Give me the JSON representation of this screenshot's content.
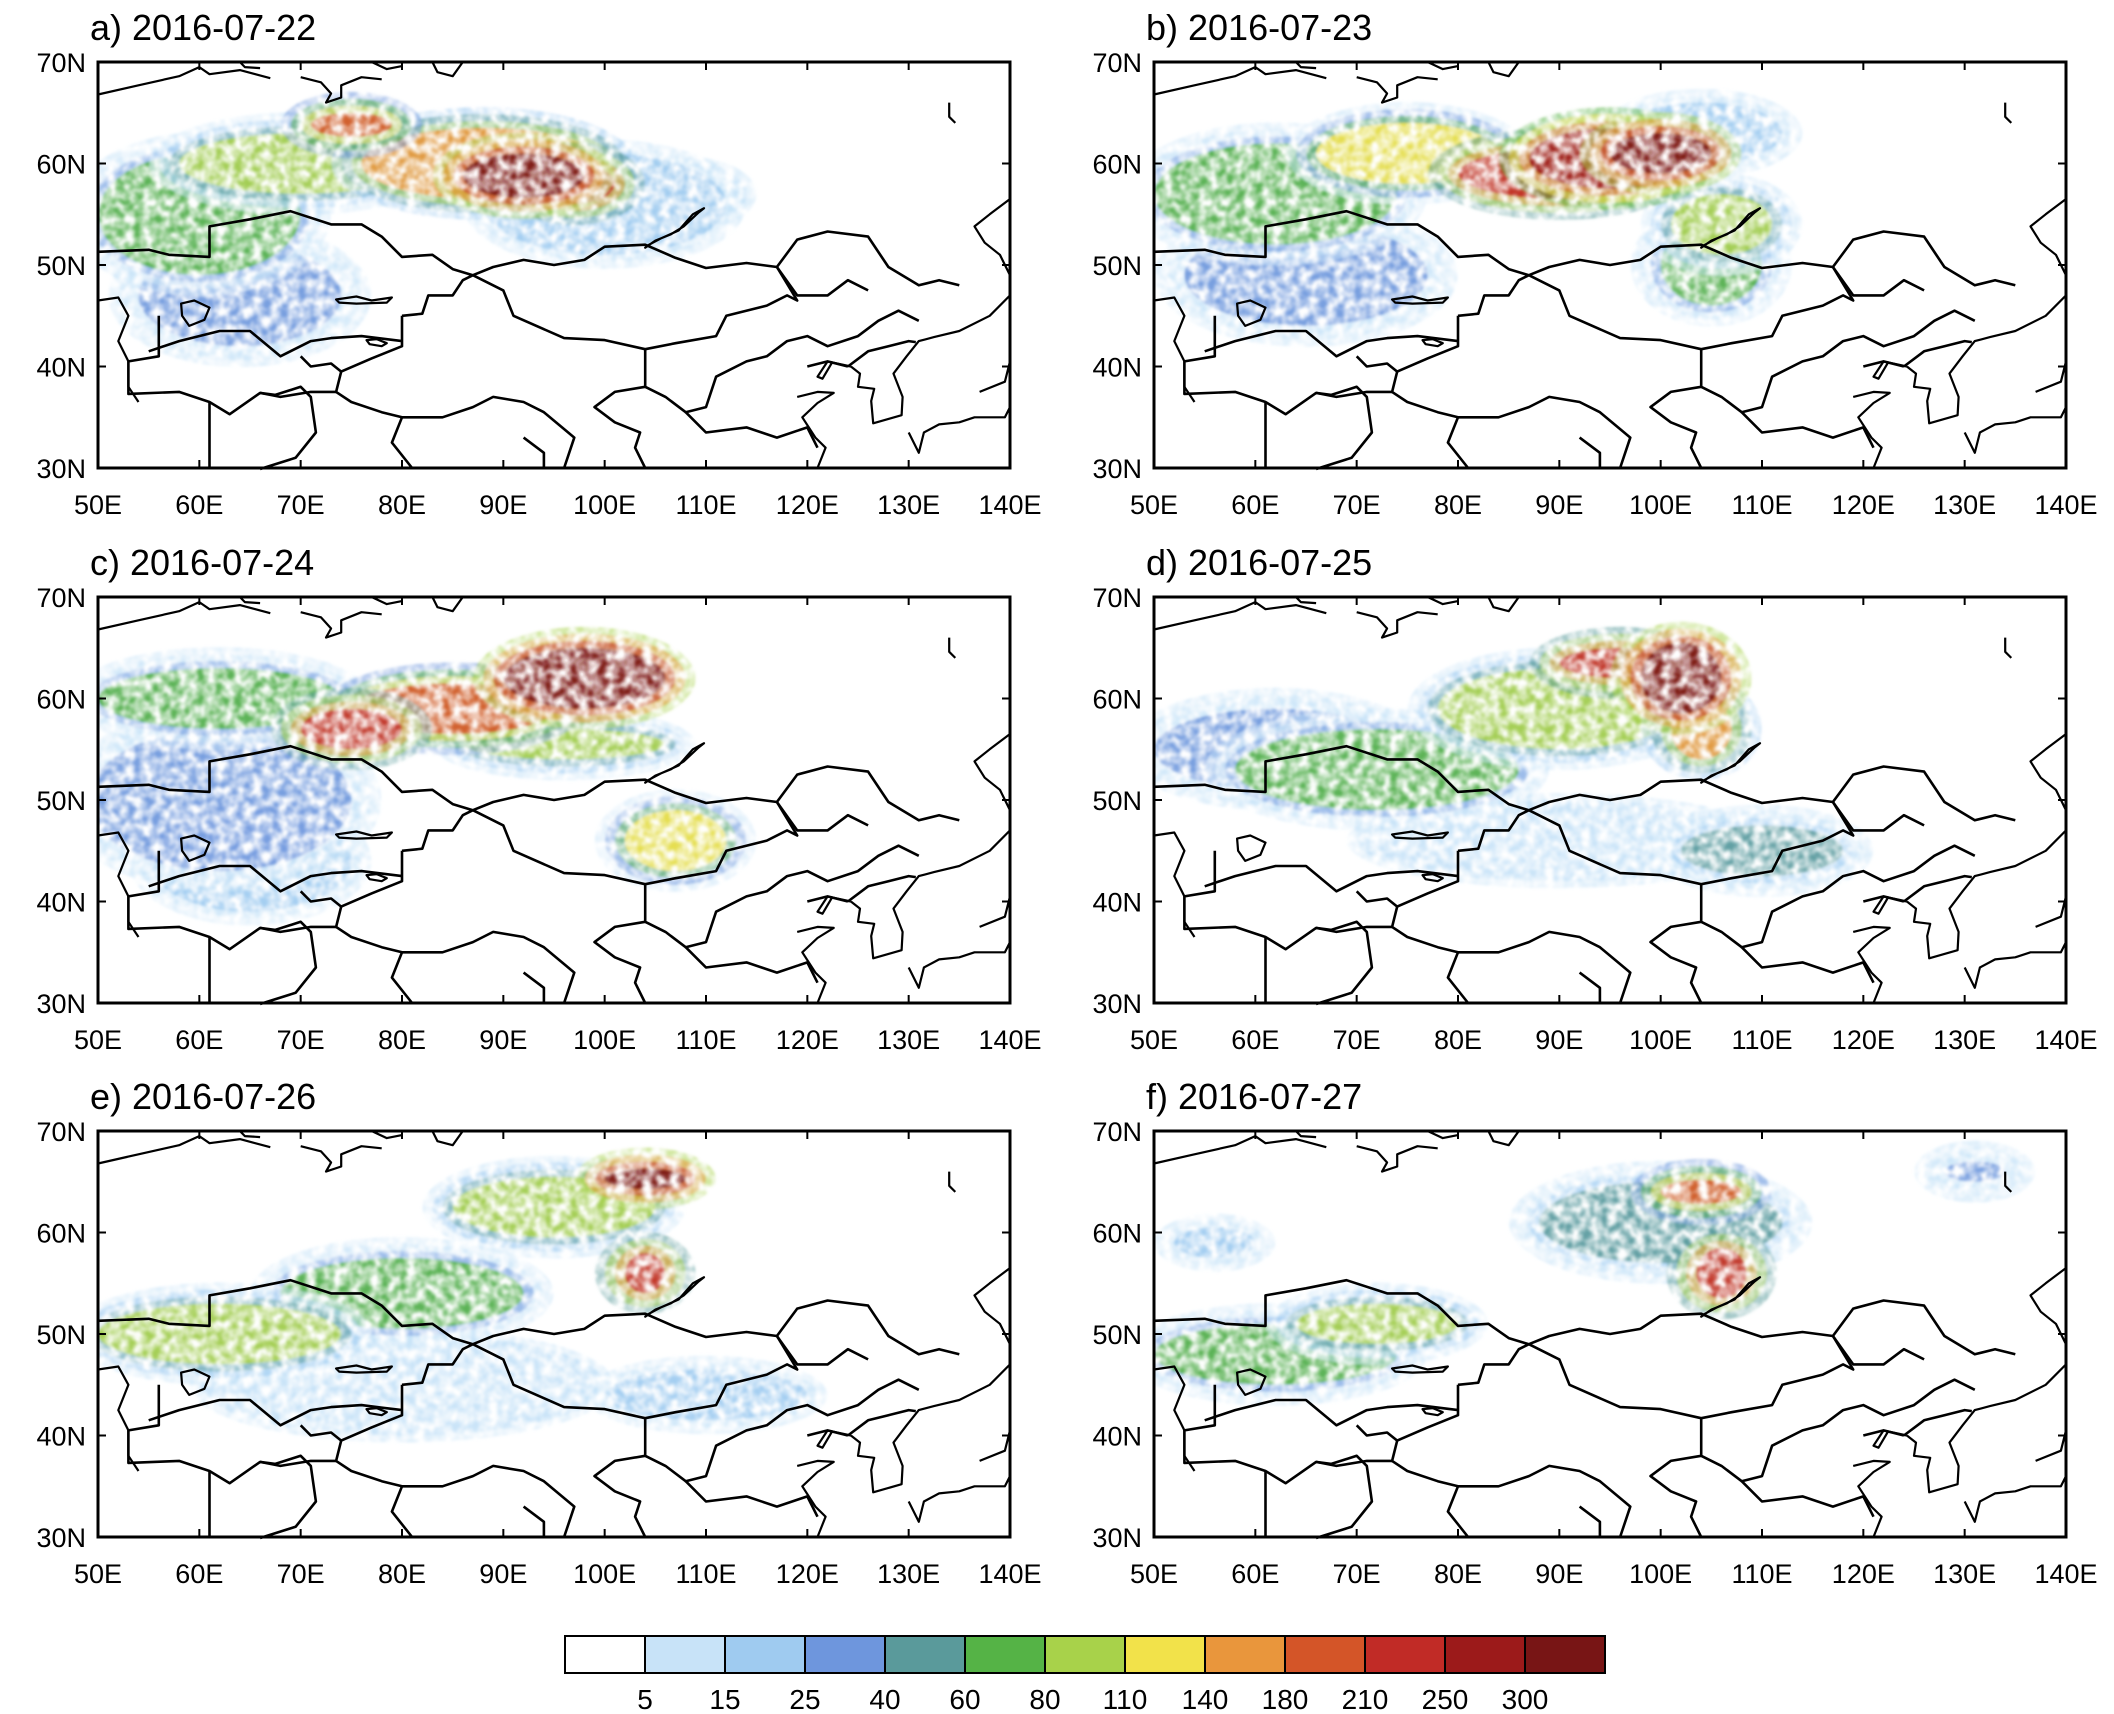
{
  "panels": [
    {
      "id": "a",
      "title": "a) 2016-07-22",
      "plumes": [
        {
          "lon": 92,
          "lat": 58.8,
          "rlon": 6,
          "rlat": 2.2,
          "level": 12
        },
        {
          "lon": 97,
          "lat": 58,
          "rlon": 4,
          "rlat": 2,
          "level": 10
        },
        {
          "lon": 88,
          "lat": 60,
          "rlon": 12,
          "rlat": 3.5,
          "level": 8
        },
        {
          "lon": 75,
          "lat": 63.8,
          "rlon": 4,
          "rlat": 1.2,
          "level": 9
        },
        {
          "lon": 70,
          "lat": 60,
          "rlon": 12,
          "rlat": 3,
          "level": 6
        },
        {
          "lon": 60,
          "lat": 55,
          "rlon": 10,
          "rlat": 6,
          "level": 5
        },
        {
          "lon": 64,
          "lat": 47,
          "rlon": 10,
          "rlat": 5,
          "level": 3
        },
        {
          "lon": 100,
          "lat": 56,
          "rlon": 12,
          "rlat": 5,
          "level": 2
        },
        {
          "lon": 108,
          "lat": 57,
          "rlon": 6,
          "rlat": 3,
          "level": 1
        }
      ]
    },
    {
      "id": "b",
      "title": "b) 2016-07-23",
      "plumes": [
        {
          "lon": 95,
          "lat": 60.5,
          "rlon": 8,
          "rlat": 3,
          "level": 11
        },
        {
          "lon": 90,
          "lat": 59,
          "rlon": 10,
          "rlat": 2.5,
          "level": 10
        },
        {
          "lon": 100,
          "lat": 61,
          "rlon": 5,
          "rlat": 2,
          "level": 12
        },
        {
          "lon": 75,
          "lat": 61,
          "rlon": 9,
          "rlat": 3,
          "level": 7
        },
        {
          "lon": 62,
          "lat": 57,
          "rlon": 12,
          "rlat": 5,
          "level": 5
        },
        {
          "lon": 65,
          "lat": 49,
          "rlon": 12,
          "rlat": 5,
          "level": 3
        },
        {
          "lon": 105,
          "lat": 50,
          "rlon": 5,
          "rlat": 4,
          "level": 5
        },
        {
          "lon": 106,
          "lat": 54,
          "rlon": 5,
          "rlat": 3,
          "level": 6
        },
        {
          "lon": 104,
          "lat": 63,
          "rlon": 8,
          "rlat": 3,
          "level": 2
        }
      ]
    },
    {
      "id": "c",
      "title": "c) 2016-07-24",
      "plumes": [
        {
          "lon": 98,
          "lat": 62,
          "rlon": 8,
          "rlat": 3,
          "level": 12
        },
        {
          "lon": 85,
          "lat": 59,
          "rlon": 10,
          "rlat": 2.5,
          "level": 9
        },
        {
          "lon": 75,
          "lat": 57,
          "rlon": 5,
          "rlat": 2,
          "level": 10
        },
        {
          "lon": 62,
          "lat": 60,
          "rlon": 12,
          "rlat": 3,
          "level": 5
        },
        {
          "lon": 96,
          "lat": 55.5,
          "rlon": 10,
          "rlat": 1.5,
          "level": 6
        },
        {
          "lon": 107,
          "lat": 46,
          "rlon": 5,
          "rlat": 3,
          "level": 7
        },
        {
          "lon": 62,
          "lat": 50,
          "rlon": 13,
          "rlat": 7,
          "level": 3
        },
        {
          "lon": 65,
          "lat": 44,
          "rlon": 10,
          "rlat": 5,
          "level": 2
        }
      ]
    },
    {
      "id": "d",
      "title": "d) 2016-07-25",
      "plumes": [
        {
          "lon": 102,
          "lat": 62,
          "rlon": 4,
          "rlat": 3.5,
          "level": 12
        },
        {
          "lon": 96,
          "lat": 63.5,
          "rlon": 6,
          "rlat": 1.5,
          "level": 10
        },
        {
          "lon": 104,
          "lat": 57,
          "rlon": 3,
          "rlat": 3,
          "level": 8
        },
        {
          "lon": 90,
          "lat": 59,
          "rlon": 12,
          "rlat": 4,
          "level": 6
        },
        {
          "lon": 72,
          "lat": 53,
          "rlon": 14,
          "rlat": 4,
          "level": 5
        },
        {
          "lon": 110,
          "lat": 45,
          "rlon": 8,
          "rlat": 2.5,
          "level": 4
        },
        {
          "lon": 62,
          "lat": 55,
          "rlon": 12,
          "rlat": 4,
          "level": 3
        },
        {
          "lon": 90,
          "lat": 46,
          "rlon": 20,
          "rlat": 4,
          "level": 1
        }
      ]
    },
    {
      "id": "e",
      "title": "e) 2016-07-26",
      "plumes": [
        {
          "lon": 104,
          "lat": 65.3,
          "rlon": 4,
          "rlat": 1,
          "level": 12
        },
        {
          "lon": 104,
          "lat": 56,
          "rlon": 2,
          "rlat": 2,
          "level": 10
        },
        {
          "lon": 95,
          "lat": 62.5,
          "rlon": 10,
          "rlat": 3,
          "level": 6
        },
        {
          "lon": 80,
          "lat": 54,
          "rlon": 12,
          "rlat": 3.5,
          "level": 5
        },
        {
          "lon": 62,
          "lat": 50,
          "rlon": 12,
          "rlat": 3,
          "level": 6
        },
        {
          "lon": 110,
          "lat": 44,
          "rlon": 10,
          "rlat": 2.5,
          "level": 2
        },
        {
          "lon": 80,
          "lat": 45,
          "rlon": 20,
          "rlat": 5,
          "level": 1
        }
      ]
    },
    {
      "id": "f",
      "title": "f) 2016-07-27",
      "plumes": [
        {
          "lon": 106,
          "lat": 56,
          "rlon": 2.5,
          "rlat": 2.5,
          "level": 10
        },
        {
          "lon": 104,
          "lat": 64,
          "rlon": 4,
          "rlat": 1.2,
          "level": 9
        },
        {
          "lon": 100,
          "lat": 61,
          "rlon": 12,
          "rlat": 4,
          "level": 4
        },
        {
          "lon": 62,
          "lat": 48,
          "rlon": 12,
          "rlat": 3,
          "level": 5
        },
        {
          "lon": 72,
          "lat": 51,
          "rlon": 8,
          "rlat": 2,
          "level": 6
        },
        {
          "lon": 131,
          "lat": 66,
          "rlon": 3,
          "rlat": 1,
          "level": 3
        },
        {
          "lon": 56,
          "lat": 59,
          "rlon": 4,
          "rlat": 1.5,
          "level": 2
        }
      ]
    }
  ],
  "axes": {
    "lon_range": [
      50,
      140
    ],
    "lat_range": [
      30,
      70
    ],
    "lon_ticks": [
      "50E",
      "60E",
      "70E",
      "80E",
      "90E",
      "100E",
      "110E",
      "120E",
      "130E",
      "140E"
    ],
    "lat_ticks": [
      "70N",
      "60N",
      "50N",
      "40N",
      "30N"
    ]
  },
  "colorbar": {
    "colors": [
      "#ffffff",
      "#c8e3f8",
      "#9fcbf0",
      "#6e96dd",
      "#5a9a9b",
      "#55b346",
      "#a8d24a",
      "#f2e24a",
      "#e9963c",
      "#d45528",
      "#c12b26",
      "#9c1a1a",
      "#781515"
    ],
    "labels": [
      "5",
      "15",
      "25",
      "40",
      "60",
      "80",
      "110",
      "140",
      "180",
      "210",
      "250",
      "300"
    ]
  }
}
